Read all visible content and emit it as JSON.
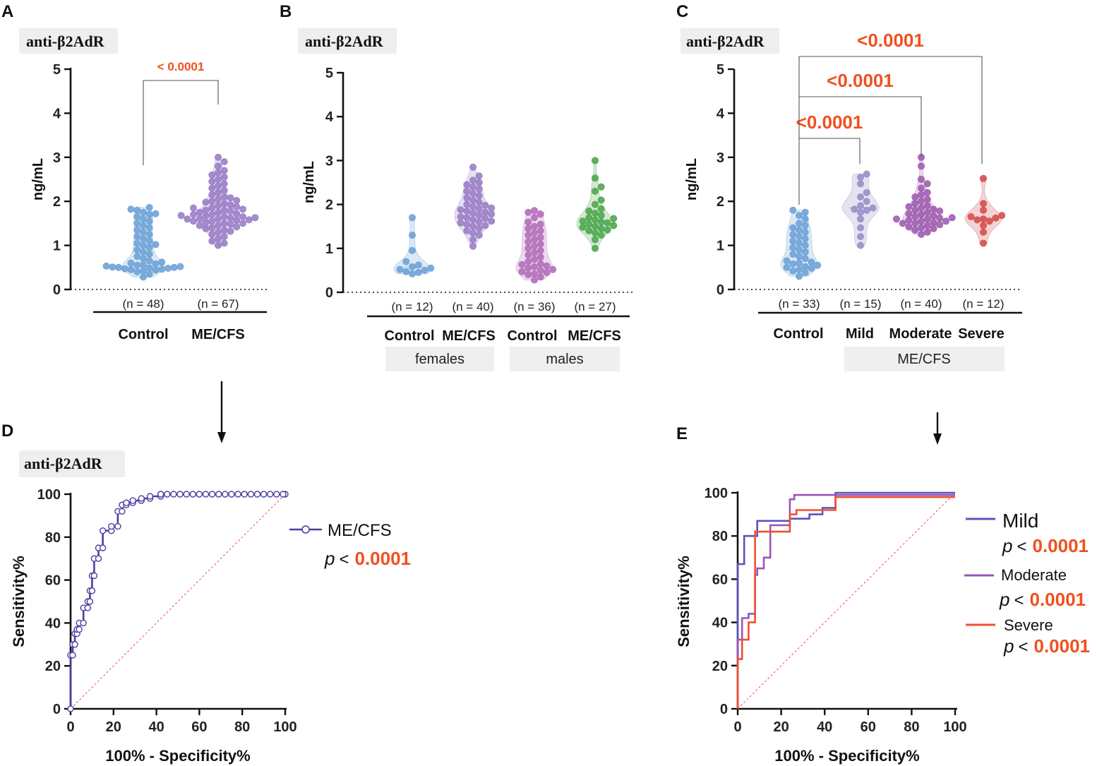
{
  "chart_data": [
    {
      "panel": "A",
      "type": "violin-scatter",
      "tag": "anti-β2AdR",
      "ylabel": "ng/mL",
      "ylim": [
        0,
        5
      ],
      "yticks": [
        "0",
        "1",
        "2",
        "3",
        "4",
        "5"
      ],
      "groups": [
        {
          "name": "Control",
          "n": "(n = 48)",
          "color": "#6fa3d8",
          "values": [
            0.28,
            0.35,
            0.4,
            0.42,
            0.44,
            0.45,
            0.46,
            0.47,
            0.48,
            0.49,
            0.5,
            0.5,
            0.51,
            0.52,
            0.53,
            0.55,
            0.56,
            0.58,
            0.6,
            0.62,
            0.65,
            0.7,
            0.75,
            0.8,
            0.85,
            0.9,
            0.95,
            1.0,
            1.02,
            1.05,
            1.1,
            1.15,
            1.2,
            1.25,
            1.3,
            1.35,
            1.4,
            1.45,
            1.5,
            1.55,
            1.6,
            1.65,
            1.7,
            1.72,
            1.75,
            1.8,
            1.82,
            1.86
          ]
        },
        {
          "name": "ME/CFS",
          "n": "(n = 67)",
          "color": "#9b7fc7",
          "values": [
            1.0,
            1.05,
            1.1,
            1.15,
            1.2,
            1.25,
            1.3,
            1.32,
            1.35,
            1.38,
            1.4,
            1.42,
            1.45,
            1.45,
            1.48,
            1.5,
            1.5,
            1.52,
            1.55,
            1.55,
            1.57,
            1.58,
            1.6,
            1.6,
            1.6,
            1.62,
            1.63,
            1.65,
            1.65,
            1.66,
            1.68,
            1.7,
            1.7,
            1.72,
            1.75,
            1.75,
            1.78,
            1.8,
            1.8,
            1.82,
            1.85,
            1.85,
            1.88,
            1.9,
            1.92,
            1.95,
            1.98,
            2.0,
            2.02,
            2.05,
            2.08,
            2.1,
            2.15,
            2.2,
            2.25,
            2.3,
            2.35,
            2.4,
            2.45,
            2.5,
            2.55,
            2.6,
            2.65,
            2.7,
            2.8,
            2.9,
            3.0
          ]
        }
      ],
      "comparisons": [
        {
          "from": 0,
          "to": 1,
          "label": "< 0.0001"
        }
      ]
    },
    {
      "panel": "B",
      "type": "violin-scatter",
      "tag": "anti-β2AdR",
      "ylabel": "ng/mL",
      "ylim": [
        0,
        5
      ],
      "yticks": [
        "0",
        "1",
        "2",
        "3",
        "4",
        "5"
      ],
      "groups": [
        {
          "name": "Control",
          "n": "(n = 12)",
          "color": "#6fa3d8",
          "values": [
            0.42,
            0.45,
            0.47,
            0.5,
            0.52,
            0.55,
            0.58,
            0.62,
            0.7,
            0.95,
            1.3,
            1.7
          ]
        },
        {
          "name": "ME/CFS",
          "n": "(n = 40)",
          "color": "#9b7fc7",
          "values": [
            1.05,
            1.2,
            1.3,
            1.35,
            1.4,
            1.45,
            1.5,
            1.52,
            1.55,
            1.58,
            1.6,
            1.62,
            1.65,
            1.68,
            1.7,
            1.72,
            1.75,
            1.78,
            1.8,
            1.82,
            1.85,
            1.88,
            1.9,
            1.92,
            1.95,
            1.98,
            2.0,
            2.05,
            2.1,
            2.15,
            2.2,
            2.25,
            2.3,
            2.35,
            2.4,
            2.45,
            2.5,
            2.55,
            2.65,
            2.85
          ]
        },
        {
          "name": "Control",
          "n": "(n = 36)",
          "color": "#b56fba",
          "values": [
            0.28,
            0.35,
            0.4,
            0.42,
            0.45,
            0.47,
            0.5,
            0.52,
            0.55,
            0.58,
            0.6,
            0.63,
            0.65,
            0.7,
            0.75,
            0.8,
            0.85,
            0.9,
            0.95,
            1.0,
            1.05,
            1.1,
            1.15,
            1.2,
            1.25,
            1.3,
            1.35,
            1.4,
            1.45,
            1.5,
            1.55,
            1.6,
            1.7,
            1.78,
            1.82,
            1.86
          ]
        },
        {
          "name": "ME/CFS",
          "n": "(n = 27)",
          "color": "#4fa84f",
          "values": [
            1.0,
            1.2,
            1.3,
            1.35,
            1.4,
            1.42,
            1.45,
            1.48,
            1.5,
            1.52,
            1.55,
            1.58,
            1.6,
            1.62,
            1.65,
            1.68,
            1.7,
            1.75,
            1.8,
            1.85,
            1.9,
            2.0,
            2.1,
            2.3,
            2.4,
            2.6,
            3.0
          ]
        }
      ],
      "subgroups": [
        {
          "label": "females",
          "span": [
            0,
            1
          ]
        },
        {
          "label": "males",
          "span": [
            2,
            3
          ]
        }
      ]
    },
    {
      "panel": "C",
      "type": "violin-scatter",
      "tag": "anti-β2AdR",
      "ylabel": "ng/mL",
      "ylim": [
        0,
        5
      ],
      "yticks": [
        "0",
        "1",
        "2",
        "3",
        "4",
        "5"
      ],
      "groups": [
        {
          "name": "Control",
          "n": "(n = 33)",
          "color": "#6fa3d8",
          "values": [
            0.3,
            0.38,
            0.42,
            0.45,
            0.48,
            0.5,
            0.52,
            0.55,
            0.58,
            0.6,
            0.62,
            0.65,
            0.7,
            0.75,
            0.8,
            0.85,
            0.9,
            0.95,
            1.0,
            1.05,
            1.1,
            1.15,
            1.2,
            1.25,
            1.3,
            1.35,
            1.4,
            1.45,
            1.5,
            1.6,
            1.68,
            1.75,
            1.8
          ]
        },
        {
          "name": "Mild",
          "n": "(n = 15)",
          "color": "#9b8fc7",
          "values": [
            1.0,
            1.2,
            1.4,
            1.6,
            1.75,
            1.8,
            1.82,
            1.85,
            1.9,
            2.0,
            2.1,
            2.2,
            2.4,
            2.55,
            2.62
          ]
        },
        {
          "name": "Moderate",
          "n": "(n = 40)",
          "color": "#a05fb0",
          "values": [
            1.25,
            1.3,
            1.35,
            1.38,
            1.4,
            1.42,
            1.45,
            1.47,
            1.5,
            1.5,
            1.52,
            1.55,
            1.55,
            1.57,
            1.6,
            1.6,
            1.62,
            1.63,
            1.65,
            1.67,
            1.7,
            1.72,
            1.75,
            1.78,
            1.8,
            1.82,
            1.85,
            1.88,
            1.9,
            1.95,
            2.0,
            2.05,
            2.1,
            2.15,
            2.2,
            2.3,
            2.4,
            2.5,
            2.8,
            3.0
          ]
        },
        {
          "name": "Severe",
          "n": "(n = 12)",
          "color": "#d45050",
          "values": [
            1.05,
            1.3,
            1.45,
            1.55,
            1.58,
            1.6,
            1.62,
            1.65,
            1.68,
            1.8,
            1.95,
            2.52
          ]
        }
      ],
      "subgroups": [
        {
          "label": "ME/CFS",
          "span": [
            1,
            3
          ]
        }
      ],
      "comparisons": [
        {
          "from": 0,
          "to": 1,
          "label": "<0.0001"
        },
        {
          "from": 0,
          "to": 2,
          "label": "<0.0001"
        },
        {
          "from": 0,
          "to": 3,
          "label": "<0.0001"
        }
      ]
    },
    {
      "panel": "D",
      "type": "line",
      "tag": "anti-β2AdR",
      "xlabel": "100% - Specificity%",
      "ylabel": "Sensitivity%",
      "xlim": [
        0,
        100
      ],
      "ylim": [
        0,
        100
      ],
      "xticks": [
        "0",
        "20",
        "40",
        "60",
        "80",
        "100"
      ],
      "yticks": [
        "0",
        "20",
        "40",
        "60",
        "80",
        "100"
      ],
      "series": [
        {
          "name": "ME/CFS",
          "p_prefix": "p",
          "p_operator": "<",
          "p_value": "0.0001",
          "color": "#4a3fa0",
          "x": [
            0,
            0,
            1,
            1,
            2,
            2,
            3,
            3,
            4,
            4,
            6,
            6,
            8,
            8,
            9,
            9,
            10,
            10,
            11,
            11,
            13,
            13,
            15,
            15,
            19,
            19,
            22,
            22,
            24,
            24,
            26,
            26,
            29,
            29,
            33,
            33,
            37,
            37,
            42,
            42,
            100
          ],
          "y": [
            0,
            25,
            25,
            30,
            30,
            35,
            35,
            37,
            37,
            40,
            40,
            47,
            47,
            50,
            50,
            55,
            55,
            62,
            62,
            70,
            70,
            75,
            75,
            83,
            83,
            85,
            85,
            92,
            92,
            95,
            95,
            96,
            96,
            97,
            97,
            98,
            98,
            99,
            99,
            100,
            100
          ]
        }
      ]
    },
    {
      "panel": "E",
      "type": "line",
      "xlabel": "100% - Specificity%",
      "ylabel": "Sensitivity%",
      "xlim": [
        0,
        100
      ],
      "ylim": [
        0,
        100
      ],
      "xticks": [
        "0",
        "20",
        "40",
        "60",
        "80",
        "100"
      ],
      "yticks": [
        "0",
        "20",
        "40",
        "60",
        "80",
        "100"
      ],
      "series": [
        {
          "name": "Mild",
          "p_prefix": "p",
          "p_operator": "<",
          "p_value": "0.0001",
          "color": "#5b55b8",
          "x": [
            0,
            0,
            3,
            3,
            9,
            9,
            24,
            24,
            33,
            33,
            39,
            39,
            45,
            45,
            100
          ],
          "y": [
            0,
            67,
            67,
            80,
            80,
            87,
            87,
            88,
            88,
            90,
            90,
            93,
            93,
            100,
            100
          ]
        },
        {
          "name": "Moderate",
          "p_prefix": "p",
          "p_operator": "<",
          "p_value": "0.0001",
          "color": "#9a55b8",
          "x": [
            0,
            0,
            2,
            2,
            5,
            5,
            8,
            8,
            9,
            9,
            12,
            12,
            15,
            15,
            24,
            24,
            26,
            26,
            100
          ],
          "y": [
            0,
            32,
            32,
            42,
            42,
            44,
            44,
            62,
            62,
            65,
            65,
            70,
            70,
            85,
            85,
            97,
            97,
            99,
            99
          ]
        },
        {
          "name": "Severe",
          "p_prefix": "p",
          "p_operator": "<",
          "p_value": "0.0001",
          "color": "#f05030",
          "x": [
            0,
            0,
            2,
            2,
            5,
            5,
            8,
            8,
            9,
            9,
            17,
            17,
            24,
            24,
            27,
            27,
            45,
            45,
            100
          ],
          "y": [
            0,
            23,
            23,
            32,
            32,
            40,
            40,
            82,
            82,
            82,
            82,
            82,
            82,
            90,
            90,
            92,
            92,
            98,
            98
          ]
        }
      ]
    }
  ]
}
